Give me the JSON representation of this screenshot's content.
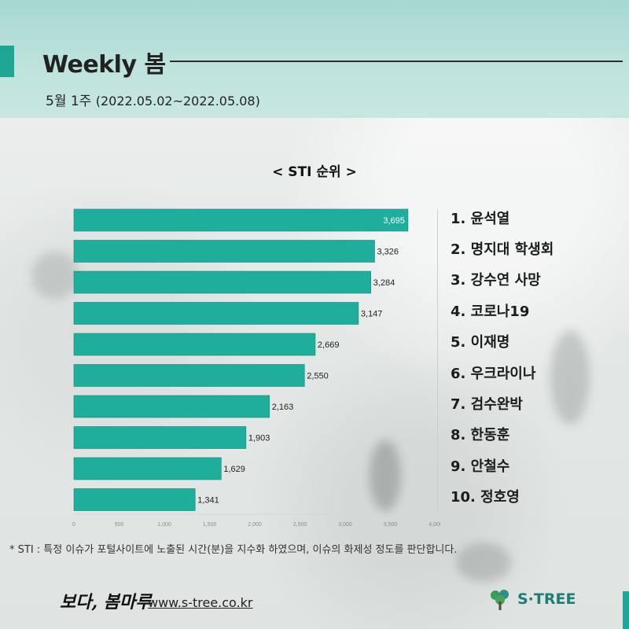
{
  "header": {
    "title": "Weekly 봄",
    "week": "5월 1주",
    "range": "(2022.05.02~2022.05.08)"
  },
  "chart_title": "< STI 순위 >",
  "chart_data": {
    "type": "bar",
    "orientation": "horizontal",
    "categories": [
      "1",
      "2",
      "3",
      "4",
      "5",
      "6",
      "7",
      "8",
      "9",
      "10"
    ],
    "values": [
      3695,
      3326,
      3284,
      3147,
      2669,
      2550,
      2163,
      1903,
      1629,
      1341
    ],
    "value_labels": [
      "3,695",
      "3,326",
      "3,284",
      "3,147",
      "2,669",
      "2,550",
      "2,163",
      "1,903",
      "1,629",
      "1,341"
    ],
    "xlim": [
      0,
      4000
    ],
    "xticks": [
      "0",
      "500",
      "1,000",
      "1,500",
      "2,000",
      "2,500",
      "3,000",
      "3,500",
      "4,000"
    ],
    "bar_color": "#1fae9b",
    "grid": false
  },
  "ranking": [
    "1. 윤석열",
    "2. 명지대 학생회",
    "3. 강수연 사망",
    "4. 코로나19",
    "5. 이재명",
    "6. 우크라이나",
    "7. 검수완박",
    "8. 한동훈",
    "9. 안철수",
    "10. 정호영"
  ],
  "footnote": "* STI : 특정 이슈가 포털사이트에 노출된 시간(분)을 지수화 하였으며, 이슈의 화제성 정도를 판단합니다.",
  "footer": {
    "brand": "보다, 봄마루",
    "url": "www.s-tree.co.kr",
    "logo": "S·TREE",
    "logo_icon": "tree-icon"
  },
  "colors": {
    "accent": "#1fa594",
    "header_bg": "#b5e0d8"
  }
}
